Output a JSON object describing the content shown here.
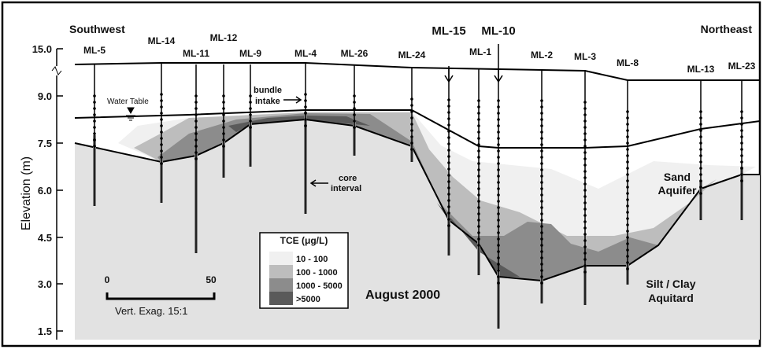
{
  "axis": {
    "label": "Elevation (m)",
    "ticks": [
      "15.0",
      "9.0",
      "7.5",
      "6.0",
      "4.5",
      "3.0",
      "1.5"
    ]
  },
  "directions": {
    "left": "Southwest",
    "right": "Northeast"
  },
  "wells": [
    "ML-5",
    "ML-14",
    "ML-11",
    "ML-12",
    "ML-9",
    "ML-4",
    "ML-26",
    "ML-24",
    "ML-15",
    "ML-1",
    "ML-10",
    "ML-2",
    "ML-3",
    "ML-8",
    "ML-13",
    "ML-23"
  ],
  "annotations": {
    "water_table": "Water Table",
    "bundle_intake": [
      "bundle",
      "intake"
    ],
    "core_interval": [
      "core",
      "interval"
    ],
    "sand_aquifer": [
      "Sand",
      "Aquifer"
    ],
    "aquitard": [
      "Silt / Clay",
      "Aquitard"
    ],
    "date": "August 2000"
  },
  "legend": {
    "title": "TCE (μg/L)",
    "items": [
      "10 - 100",
      "100 - 1000",
      "1000 - 5000",
      ">5000"
    ]
  },
  "scale": {
    "start": "0",
    "end": "50",
    "note": "Vert. Exag. 15:1"
  }
}
